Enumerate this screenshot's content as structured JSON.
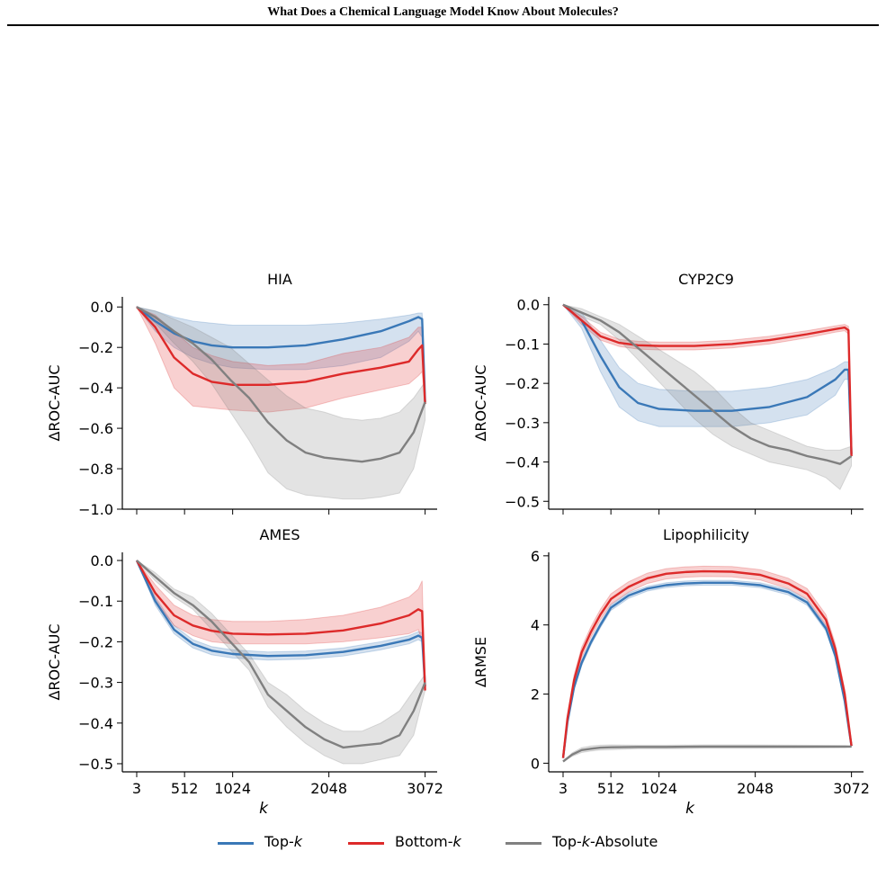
{
  "header": {
    "title": "What Does a Chemical Language Model Know About Molecules?"
  },
  "colors": {
    "top_k": "#3a78b7",
    "bottom_k": "#dd2a2a",
    "top_k_abs": "#808080"
  },
  "legend": {
    "items": [
      {
        "key": "top_k",
        "label_main": "Top-",
        "label_italic": "k",
        "label_suffix": ""
      },
      {
        "key": "bottom_k",
        "label_main": "Bottom-",
        "label_italic": "k",
        "label_suffix": ""
      },
      {
        "key": "top_k_abs",
        "label_main": "Top-",
        "label_italic": "k",
        "label_suffix": "-Absolute"
      }
    ]
  },
  "chart_data": [
    {
      "type": "line",
      "title": "HIA",
      "ylabel": "ΔROC-AUC",
      "xlabel": "",
      "ylim": [
        -1.0,
        0.05
      ],
      "yticks": [
        0.0,
        -0.2,
        -0.4,
        -0.6,
        -0.8,
        -1.0
      ],
      "ytick_labels": [
        "0.0",
        "−0.2",
        "−0.4",
        "−0.6",
        "−0.8",
        "−1.0"
      ],
      "xticks": [
        3,
        512,
        1024,
        2048,
        3072
      ],
      "xtick_labels": [],
      "xlim": [
        -150,
        3200
      ],
      "series": [
        {
          "key": "top_k",
          "x": [
            3,
            200,
            400,
            600,
            800,
            1024,
            1400,
            1800,
            2200,
            2600,
            2900,
            3000,
            3040,
            3072
          ],
          "y": [
            0,
            -0.07,
            -0.13,
            -0.17,
            -0.19,
            -0.2,
            -0.2,
            -0.19,
            -0.16,
            -0.12,
            -0.07,
            -0.05,
            -0.06,
            -0.47
          ],
          "upper": [
            0,
            -0.02,
            -0.05,
            -0.07,
            -0.08,
            -0.09,
            -0.09,
            -0.09,
            -0.08,
            -0.06,
            -0.04,
            -0.03,
            -0.03,
            -0.47
          ],
          "lower": [
            0,
            -0.12,
            -0.2,
            -0.25,
            -0.28,
            -0.3,
            -0.31,
            -0.31,
            -0.29,
            -0.25,
            -0.17,
            -0.12,
            -0.15,
            -0.47
          ]
        },
        {
          "key": "bottom_k",
          "x": [
            3,
            200,
            400,
            600,
            800,
            1024,
            1400,
            1800,
            2200,
            2600,
            2900,
            3000,
            3040,
            3072
          ],
          "y": [
            0,
            -0.1,
            -0.25,
            -0.33,
            -0.37,
            -0.385,
            -0.385,
            -0.37,
            -0.33,
            -0.3,
            -0.27,
            -0.21,
            -0.19,
            -0.48
          ],
          "upper": [
            0,
            -0.04,
            -0.12,
            -0.2,
            -0.24,
            -0.27,
            -0.29,
            -0.28,
            -0.23,
            -0.2,
            -0.15,
            -0.1,
            -0.1,
            -0.48
          ],
          "lower": [
            0,
            -0.18,
            -0.4,
            -0.49,
            -0.5,
            -0.51,
            -0.52,
            -0.5,
            -0.45,
            -0.41,
            -0.38,
            -0.34,
            -0.32,
            -0.48
          ]
        },
        {
          "key": "top_k_abs",
          "x": [
            3,
            200,
            400,
            600,
            800,
            1000,
            1200,
            1400,
            1600,
            1800,
            2000,
            2200,
            2400,
            2600,
            2800,
            2950,
            3072
          ],
          "y": [
            0,
            -0.05,
            -0.12,
            -0.18,
            -0.26,
            -0.36,
            -0.45,
            -0.57,
            -0.66,
            -0.72,
            -0.745,
            -0.755,
            -0.765,
            -0.75,
            -0.72,
            -0.62,
            -0.47
          ],
          "upper": [
            0,
            -0.02,
            -0.06,
            -0.1,
            -0.15,
            -0.2,
            -0.28,
            -0.36,
            -0.44,
            -0.5,
            -0.52,
            -0.55,
            -0.56,
            -0.55,
            -0.52,
            -0.45,
            -0.37
          ],
          "lower": [
            0,
            -0.08,
            -0.18,
            -0.27,
            -0.38,
            -0.52,
            -0.66,
            -0.82,
            -0.9,
            -0.93,
            -0.94,
            -0.95,
            -0.95,
            -0.94,
            -0.92,
            -0.8,
            -0.56
          ]
        }
      ]
    },
    {
      "type": "line",
      "title": "CYP2C9",
      "ylabel": "ΔROC-AUC",
      "xlabel": "",
      "ylim": [
        -0.52,
        0.02
      ],
      "yticks": [
        0.0,
        -0.1,
        -0.2,
        -0.3,
        -0.4,
        -0.5
      ],
      "ytick_labels": [
        "0.0",
        "−0.1",
        "−0.2",
        "−0.3",
        "−0.4",
        "−0.5"
      ],
      "xticks": [
        3,
        512,
        1024,
        2048,
        3072
      ],
      "xtick_labels": [],
      "xlim": [
        -150,
        3200
      ],
      "series": [
        {
          "key": "top_k",
          "x": [
            3,
            200,
            400,
            600,
            800,
            1024,
            1400,
            1800,
            2200,
            2600,
            2900,
            3000,
            3040,
            3072
          ],
          "y": [
            0,
            -0.04,
            -0.13,
            -0.21,
            -0.25,
            -0.265,
            -0.27,
            -0.27,
            -0.26,
            -0.235,
            -0.19,
            -0.165,
            -0.165,
            -0.38
          ],
          "upper": [
            0,
            -0.02,
            -0.09,
            -0.16,
            -0.2,
            -0.215,
            -0.22,
            -0.22,
            -0.21,
            -0.19,
            -0.16,
            -0.145,
            -0.145,
            -0.38
          ],
          "lower": [
            0,
            -0.06,
            -0.17,
            -0.26,
            -0.295,
            -0.31,
            -0.31,
            -0.31,
            -0.3,
            -0.28,
            -0.23,
            -0.19,
            -0.19,
            -0.38
          ]
        },
        {
          "key": "bottom_k",
          "x": [
            3,
            200,
            400,
            600,
            800,
            1024,
            1400,
            1800,
            2200,
            2600,
            2900,
            3000,
            3040,
            3072
          ],
          "y": [
            0,
            -0.04,
            -0.08,
            -0.097,
            -0.103,
            -0.105,
            -0.105,
            -0.1,
            -0.09,
            -0.075,
            -0.062,
            -0.058,
            -0.065,
            -0.385
          ],
          "upper": [
            0,
            -0.03,
            -0.07,
            -0.088,
            -0.093,
            -0.095,
            -0.095,
            -0.09,
            -0.08,
            -0.066,
            -0.054,
            -0.05,
            -0.055,
            -0.385
          ],
          "lower": [
            0,
            -0.05,
            -0.09,
            -0.106,
            -0.113,
            -0.115,
            -0.115,
            -0.11,
            -0.1,
            -0.084,
            -0.07,
            -0.066,
            -0.075,
            -0.385
          ]
        },
        {
          "key": "top_k_abs",
          "x": [
            3,
            200,
            400,
            600,
            800,
            1000,
            1200,
            1400,
            1600,
            1800,
            2000,
            2200,
            2400,
            2600,
            2800,
            2950,
            3072
          ],
          "y": [
            0,
            -0.02,
            -0.04,
            -0.07,
            -0.11,
            -0.15,
            -0.19,
            -0.23,
            -0.27,
            -0.31,
            -0.34,
            -0.36,
            -0.37,
            -0.385,
            -0.395,
            -0.405,
            -0.385
          ],
          "upper": [
            0,
            -0.01,
            -0.03,
            -0.05,
            -0.08,
            -0.11,
            -0.14,
            -0.17,
            -0.21,
            -0.26,
            -0.3,
            -0.32,
            -0.34,
            -0.36,
            -0.37,
            -0.37,
            -0.36
          ],
          "lower": [
            0,
            -0.03,
            -0.05,
            -0.09,
            -0.14,
            -0.19,
            -0.24,
            -0.29,
            -0.33,
            -0.36,
            -0.38,
            -0.4,
            -0.41,
            -0.42,
            -0.44,
            -0.47,
            -0.41
          ]
        }
      ]
    },
    {
      "type": "line",
      "title": "AMES",
      "ylabel": "ΔROC-AUC",
      "xlabel": "k",
      "ylim": [
        -0.52,
        0.02
      ],
      "yticks": [
        0.0,
        -0.1,
        -0.2,
        -0.3,
        -0.4,
        -0.5
      ],
      "ytick_labels": [
        "0.0",
        "−0.1",
        "−0.2",
        "−0.3",
        "−0.4",
        "−0.5"
      ],
      "xticks": [
        3,
        512,
        1024,
        2048,
        3072
      ],
      "xtick_labels": [
        "3",
        "512",
        "1024",
        "2048",
        "3072"
      ],
      "xlim": [
        -150,
        3200
      ],
      "series": [
        {
          "key": "top_k",
          "x": [
            3,
            200,
            400,
            600,
            800,
            1024,
            1400,
            1800,
            2200,
            2600,
            2900,
            3000,
            3040,
            3072
          ],
          "y": [
            0,
            -0.1,
            -0.17,
            -0.205,
            -0.222,
            -0.23,
            -0.235,
            -0.233,
            -0.225,
            -0.21,
            -0.195,
            -0.185,
            -0.19,
            -0.31
          ],
          "upper": [
            0,
            -0.09,
            -0.16,
            -0.195,
            -0.212,
            -0.22,
            -0.225,
            -0.223,
            -0.215,
            -0.2,
            -0.185,
            -0.175,
            -0.178,
            -0.31
          ],
          "lower": [
            0,
            -0.11,
            -0.18,
            -0.215,
            -0.232,
            -0.24,
            -0.245,
            -0.243,
            -0.235,
            -0.22,
            -0.205,
            -0.195,
            -0.2,
            -0.31
          ]
        },
        {
          "key": "bottom_k",
          "x": [
            3,
            200,
            400,
            600,
            800,
            1024,
            1400,
            1800,
            2200,
            2600,
            2900,
            3000,
            3040,
            3072
          ],
          "y": [
            0,
            -0.08,
            -0.135,
            -0.16,
            -0.173,
            -0.18,
            -0.182,
            -0.18,
            -0.172,
            -0.155,
            -0.135,
            -0.12,
            -0.125,
            -0.32
          ],
          "upper": [
            0,
            -0.06,
            -0.11,
            -0.135,
            -0.145,
            -0.15,
            -0.15,
            -0.145,
            -0.135,
            -0.115,
            -0.09,
            -0.07,
            -0.05,
            -0.32
          ],
          "lower": [
            0,
            -0.1,
            -0.16,
            -0.185,
            -0.2,
            -0.205,
            -0.205,
            -0.205,
            -0.2,
            -0.19,
            -0.18,
            -0.17,
            -0.2,
            -0.32
          ]
        },
        {
          "key": "top_k_abs",
          "x": [
            3,
            200,
            400,
            600,
            800,
            1000,
            1200,
            1400,
            1600,
            1800,
            2000,
            2200,
            2400,
            2600,
            2800,
            2950,
            3072
          ],
          "y": [
            0,
            -0.04,
            -0.08,
            -0.11,
            -0.15,
            -0.2,
            -0.25,
            -0.33,
            -0.37,
            -0.41,
            -0.44,
            -0.46,
            -0.455,
            -0.45,
            -0.43,
            -0.37,
            -0.3
          ],
          "upper": [
            0,
            -0.03,
            -0.07,
            -0.09,
            -0.13,
            -0.18,
            -0.23,
            -0.3,
            -0.33,
            -0.37,
            -0.4,
            -0.42,
            -0.42,
            -0.4,
            -0.37,
            -0.32,
            -0.28
          ],
          "lower": [
            0,
            -0.05,
            -0.09,
            -0.12,
            -0.17,
            -0.22,
            -0.27,
            -0.36,
            -0.41,
            -0.45,
            -0.48,
            -0.5,
            -0.5,
            -0.49,
            -0.48,
            -0.43,
            -0.32
          ]
        }
      ]
    },
    {
      "type": "line",
      "title": "Lipophilicity",
      "ylabel": "ΔRMSE",
      "xlabel": "k",
      "ylim": [
        -0.25,
        6.1
      ],
      "yticks": [
        0,
        2,
        4,
        6
      ],
      "ytick_labels": [
        "0",
        "2",
        "4",
        "6"
      ],
      "xticks": [
        3,
        512,
        1024,
        2048,
        3072
      ],
      "xtick_labels": [
        "3",
        "512",
        "1024",
        "2048",
        "3072"
      ],
      "xlim": [
        -150,
        3200
      ],
      "series": [
        {
          "key": "top_k",
          "x": [
            3,
            50,
            120,
            200,
            300,
            400,
            512,
            700,
            900,
            1100,
            1300,
            1500,
            1800,
            2100,
            2400,
            2600,
            2800,
            2900,
            3000,
            3072
          ],
          "y": [
            0.15,
            1.2,
            2.2,
            2.9,
            3.5,
            4.0,
            4.5,
            4.85,
            5.05,
            5.15,
            5.2,
            5.22,
            5.22,
            5.15,
            4.95,
            4.65,
            3.9,
            3.1,
            1.8,
            0.5
          ],
          "upper": [
            0.15,
            1.25,
            2.28,
            2.98,
            3.58,
            4.08,
            4.58,
            4.93,
            5.12,
            5.22,
            5.27,
            5.29,
            5.29,
            5.22,
            5.03,
            4.73,
            3.98,
            3.18,
            1.88,
            0.5
          ],
          "lower": [
            0.15,
            1.15,
            2.12,
            2.82,
            3.42,
            3.92,
            4.42,
            4.77,
            4.98,
            5.08,
            5.13,
            5.15,
            5.15,
            5.08,
            4.87,
            4.57,
            3.82,
            3.02,
            1.72,
            0.5
          ]
        },
        {
          "key": "bottom_k",
          "x": [
            3,
            50,
            120,
            200,
            300,
            400,
            512,
            700,
            900,
            1100,
            1300,
            1500,
            1800,
            2100,
            2400,
            2600,
            2800,
            2900,
            3000,
            3072
          ],
          "y": [
            0.15,
            1.3,
            2.4,
            3.2,
            3.8,
            4.3,
            4.75,
            5.1,
            5.35,
            5.48,
            5.53,
            5.55,
            5.54,
            5.45,
            5.2,
            4.9,
            4.15,
            3.3,
            2.0,
            0.5
          ],
          "upper": [
            0.15,
            1.4,
            2.55,
            3.35,
            3.95,
            4.45,
            4.9,
            5.25,
            5.5,
            5.63,
            5.68,
            5.7,
            5.69,
            5.6,
            5.35,
            5.05,
            4.3,
            3.45,
            2.15,
            0.5
          ],
          "lower": [
            0.15,
            1.2,
            2.25,
            3.05,
            3.65,
            4.15,
            4.6,
            4.95,
            5.2,
            5.33,
            5.38,
            5.4,
            5.39,
            5.3,
            5.05,
            4.75,
            4.0,
            3.15,
            1.85,
            0.5
          ]
        },
        {
          "key": "top_k_abs",
          "x": [
            3,
            100,
            200,
            300,
            400,
            512,
            800,
            1100,
            1500,
            2000,
            2500,
            3000,
            3072
          ],
          "y": [
            0.05,
            0.25,
            0.38,
            0.42,
            0.45,
            0.46,
            0.47,
            0.47,
            0.48,
            0.48,
            0.48,
            0.48,
            0.48
          ],
          "upper": [
            0.05,
            0.3,
            0.45,
            0.5,
            0.52,
            0.53,
            0.52,
            0.52,
            0.53,
            0.53,
            0.52,
            0.51,
            0.5
          ],
          "lower": [
            0.05,
            0.2,
            0.31,
            0.35,
            0.38,
            0.39,
            0.42,
            0.42,
            0.43,
            0.43,
            0.44,
            0.45,
            0.46
          ]
        }
      ]
    }
  ]
}
